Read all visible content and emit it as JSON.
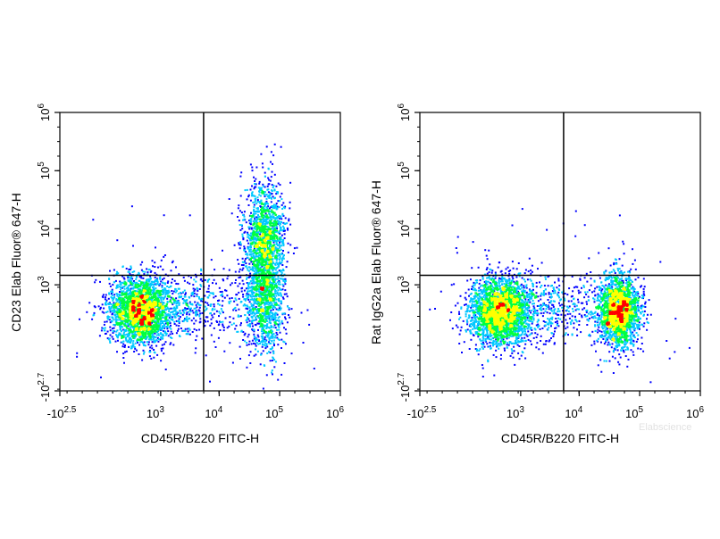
{
  "chart_data": [
    {
      "type": "scatter",
      "subtype": "flow-cytometry-density-dot-plot",
      "xlabel": "CD45R/B220 FITC-H",
      "ylabel": "CD23 Elab Fluor® 647-H",
      "x_scale": "biexponential",
      "y_scale": "biexponential",
      "xlim": [
        -316,
        1000000
      ],
      "ylim": [
        -501,
        1000000
      ],
      "x_ticks": [
        {
          "base": "-10",
          "exp": "2.5"
        },
        {
          "base": "10",
          "exp": "3"
        },
        {
          "base": "10",
          "exp": "4"
        },
        {
          "base": "10",
          "exp": "5"
        },
        {
          "base": "10",
          "exp": "6"
        }
      ],
      "y_ticks": [
        {
          "base": "-10",
          "exp": "2.7"
        },
        {
          "base": "10",
          "exp": "3"
        },
        {
          "base": "10",
          "exp": "4"
        },
        {
          "base": "10",
          "exp": "5"
        },
        {
          "base": "10",
          "exp": "6"
        }
      ],
      "quadrant_gate": {
        "x": 5500,
        "y": 1500
      },
      "populations": [
        {
          "x": 400,
          "y": 300,
          "events": 2600
        },
        {
          "x": 55000,
          "y": 7000,
          "events": 1500
        },
        {
          "x": 55000,
          "y": 500,
          "events": 1100
        },
        {
          "x": 3000,
          "y": 400,
          "events": 520
        }
      ],
      "grid": false
    },
    {
      "type": "scatter",
      "subtype": "flow-cytometry-density-dot-plot",
      "xlabel": "CD45R/B220 FITC-H",
      "ylabel": "Rat IgG2a Elab Fluor® 647-H",
      "x_scale": "biexponential",
      "y_scale": "biexponential",
      "xlim": [
        -316,
        1000000
      ],
      "ylim": [
        -501,
        1000000
      ],
      "x_ticks": [
        {
          "base": "-10",
          "exp": "2.5"
        },
        {
          "base": "10",
          "exp": "3"
        },
        {
          "base": "10",
          "exp": "4"
        },
        {
          "base": "10",
          "exp": "5"
        },
        {
          "base": "10",
          "exp": "6"
        }
      ],
      "y_ticks": [
        {
          "base": "-10",
          "exp": "2.7"
        },
        {
          "base": "10",
          "exp": "3"
        },
        {
          "base": "10",
          "exp": "4"
        },
        {
          "base": "10",
          "exp": "5"
        },
        {
          "base": "10",
          "exp": "6"
        }
      ],
      "quadrant_gate": {
        "x": 5500,
        "y": 1500
      },
      "populations": [
        {
          "x": 400,
          "y": 300,
          "events": 2600
        },
        {
          "x": 45000,
          "y": 300,
          "events": 2200
        },
        {
          "x": 3000,
          "y": 350,
          "events": 500
        }
      ],
      "grid": false
    }
  ],
  "colors": {
    "density_low": "#0000ff",
    "density_mid_low": "#00c8ff",
    "density_mid": "#00ff40",
    "density_mid_high": "#ffff00",
    "density_high": "#ff0000",
    "gate_line": "#000000",
    "axis": "#000000"
  },
  "watermark": "Elabscience"
}
